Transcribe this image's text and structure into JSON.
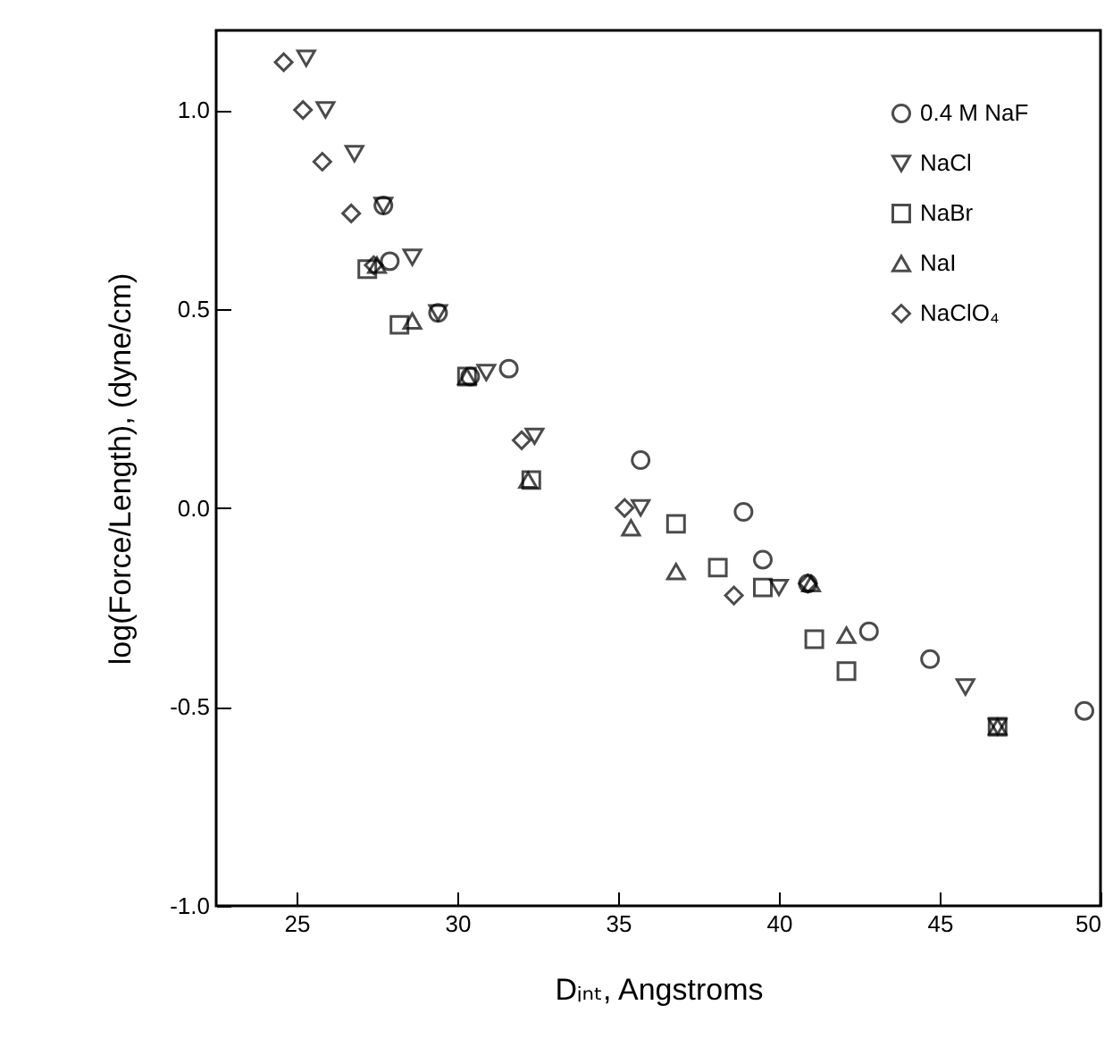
{
  "chart_data": {
    "type": "scatter",
    "xlabel": "Dᵢₙₜ, Angstroms",
    "ylabel": "log(Force/Length), (dyne/cm)",
    "xlim": [
      22.5,
      50
    ],
    "xticks": [
      25,
      30,
      35,
      40,
      45,
      50
    ],
    "ylim": [
      -1,
      1.2
    ],
    "yticks": [
      {
        "value": -1,
        "label": "-1.0"
      },
      {
        "value": -0.5,
        "label": "-0.5"
      },
      {
        "value": 0,
        "label": "0.0"
      },
      {
        "value": 0.5,
        "label": "0.5"
      },
      {
        "value": 1,
        "label": "1.0"
      }
    ],
    "grid": false,
    "legend": "top right",
    "series": [
      {
        "name": "0.4 M NaF",
        "color": "#000000",
        "marker": "circle",
        "x": [
          27.7,
          27.9,
          29.4,
          30.4,
          31.6,
          35.7,
          38.9,
          39.5,
          40.9,
          42.8,
          44.7,
          49.5
        ],
        "values": [
          0.76,
          0.62,
          0.49,
          0.33,
          0.35,
          0.12,
          -0.01,
          -0.13,
          -0.19,
          -0.31,
          -0.38,
          -0.51
        ]
      },
      {
        "name": "NaCl",
        "color": "#000000",
        "marker": "triangle-down",
        "x": [
          25.3,
          25.9,
          26.8,
          27.7,
          28.6,
          29.4,
          30.9,
          32.4,
          35.7,
          40.0,
          45.8,
          46.8
        ],
        "values": [
          1.13,
          1.0,
          0.89,
          0.76,
          0.63,
          0.49,
          0.34,
          0.18,
          0.0,
          -0.2,
          -0.45,
          -0.55
        ]
      },
      {
        "name": "NaBr",
        "color": "#000000",
        "marker": "square",
        "x": [
          27.2,
          28.2,
          30.3,
          32.3,
          36.8,
          38.1,
          39.5,
          41.1,
          42.1,
          46.8
        ],
        "values": [
          0.6,
          0.46,
          0.33,
          0.07,
          -0.04,
          -0.15,
          -0.2,
          -0.33,
          -0.41,
          -0.55
        ]
      },
      {
        "name": "NaI",
        "color": "#000000",
        "marker": "triangle-up",
        "x": [
          27.5,
          28.6,
          30.3,
          32.2,
          35.4,
          36.8,
          41.0,
          42.1,
          46.8
        ],
        "values": [
          0.61,
          0.47,
          0.33,
          0.07,
          -0.05,
          -0.16,
          -0.19,
          -0.32,
          -0.55
        ]
      },
      {
        "name": "NaClO₄",
        "color": "#000000",
        "marker": "diamond",
        "x": [
          24.6,
          25.2,
          25.8,
          26.7,
          27.4,
          32.0,
          35.2,
          38.6,
          40.9
        ],
        "values": [
          1.12,
          1.0,
          0.87,
          0.74,
          0.61,
          0.17,
          0.0,
          -0.22,
          -0.19
        ]
      }
    ]
  }
}
